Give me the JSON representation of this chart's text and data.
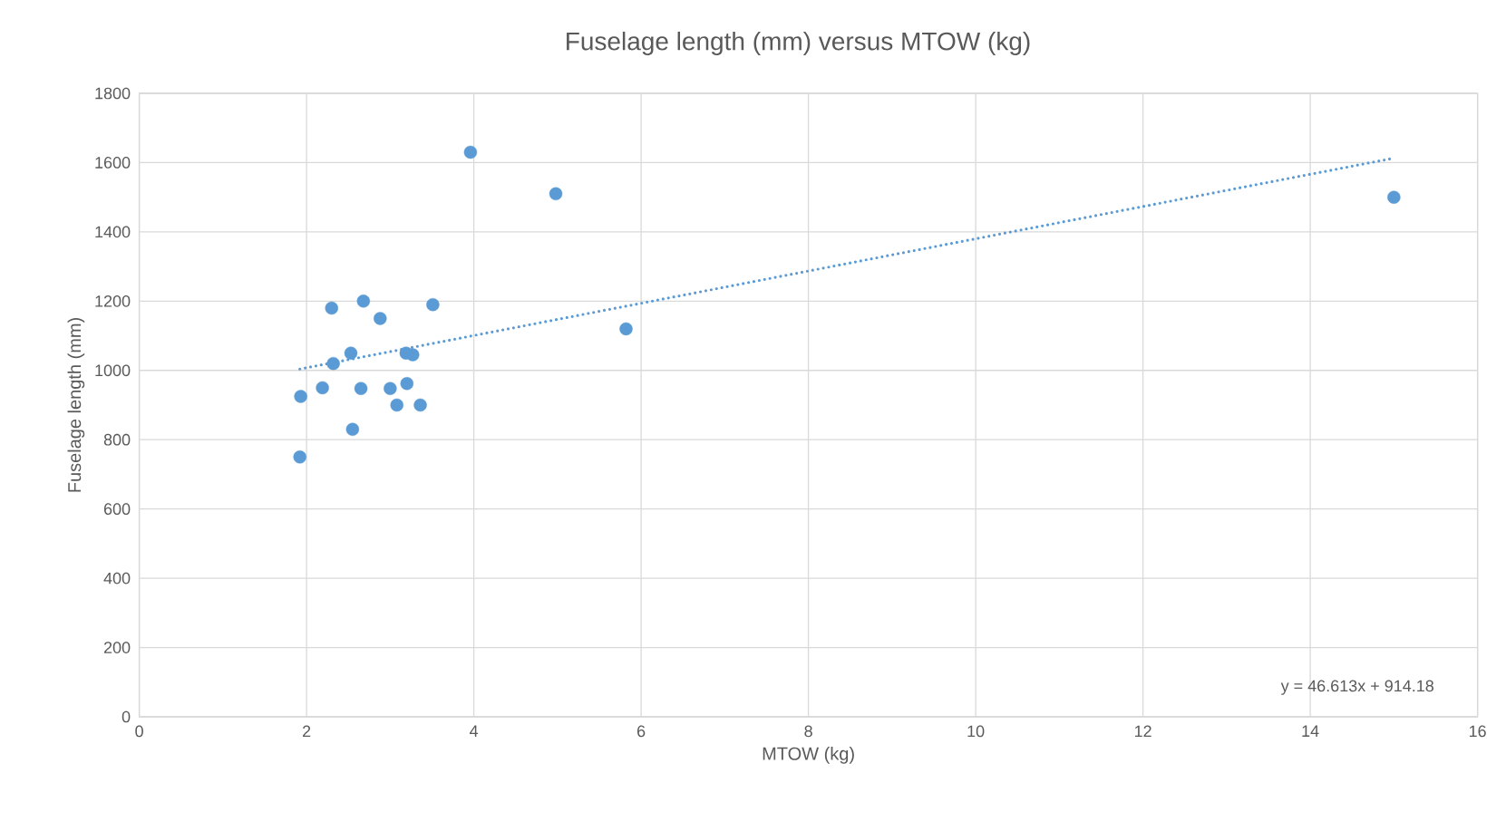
{
  "chart_data": {
    "type": "scatter",
    "title": "Fuselage length (mm) versus MTOW (kg)",
    "xlabel": "MTOW (kg)",
    "ylabel": "Fuselage length (mm)",
    "series": [
      {
        "color": "#5b9bd5",
        "marker": "circle",
        "x": [
          1.92,
          1.93,
          2.19,
          2.3,
          2.32,
          2.53,
          2.55,
          2.65,
          2.68,
          2.88,
          3.0,
          3.08,
          3.19,
          3.2,
          3.27,
          3.36,
          3.51,
          3.96,
          4.98,
          5.82,
          15.0
        ],
        "values": [
          750,
          925,
          950,
          1180,
          1020,
          1050,
          830,
          948,
          1200,
          1150,
          948,
          900,
          1050,
          962,
          1045,
          900,
          1190,
          1630,
          1510,
          1120,
          1500
        ]
      },
      {
        "type": "line",
        "color": "#5b9bd5",
        "line_style": "dotted",
        "marker": "none",
        "x": [
          1.92,
          15.0
        ],
        "values": [
          1004,
          1613
        ]
      }
    ],
    "xlim": [
      0,
      16
    ],
    "ylim": [
      0,
      1800
    ],
    "xticks": [
      0,
      2,
      4,
      6,
      8,
      10,
      12,
      14,
      16
    ],
    "yticks": [
      0,
      200,
      400,
      600,
      800,
      1000,
      1200,
      1400,
      1600,
      1800
    ],
    "grid": true,
    "annotations": [
      "y = 46.613x + 914.18"
    ]
  }
}
